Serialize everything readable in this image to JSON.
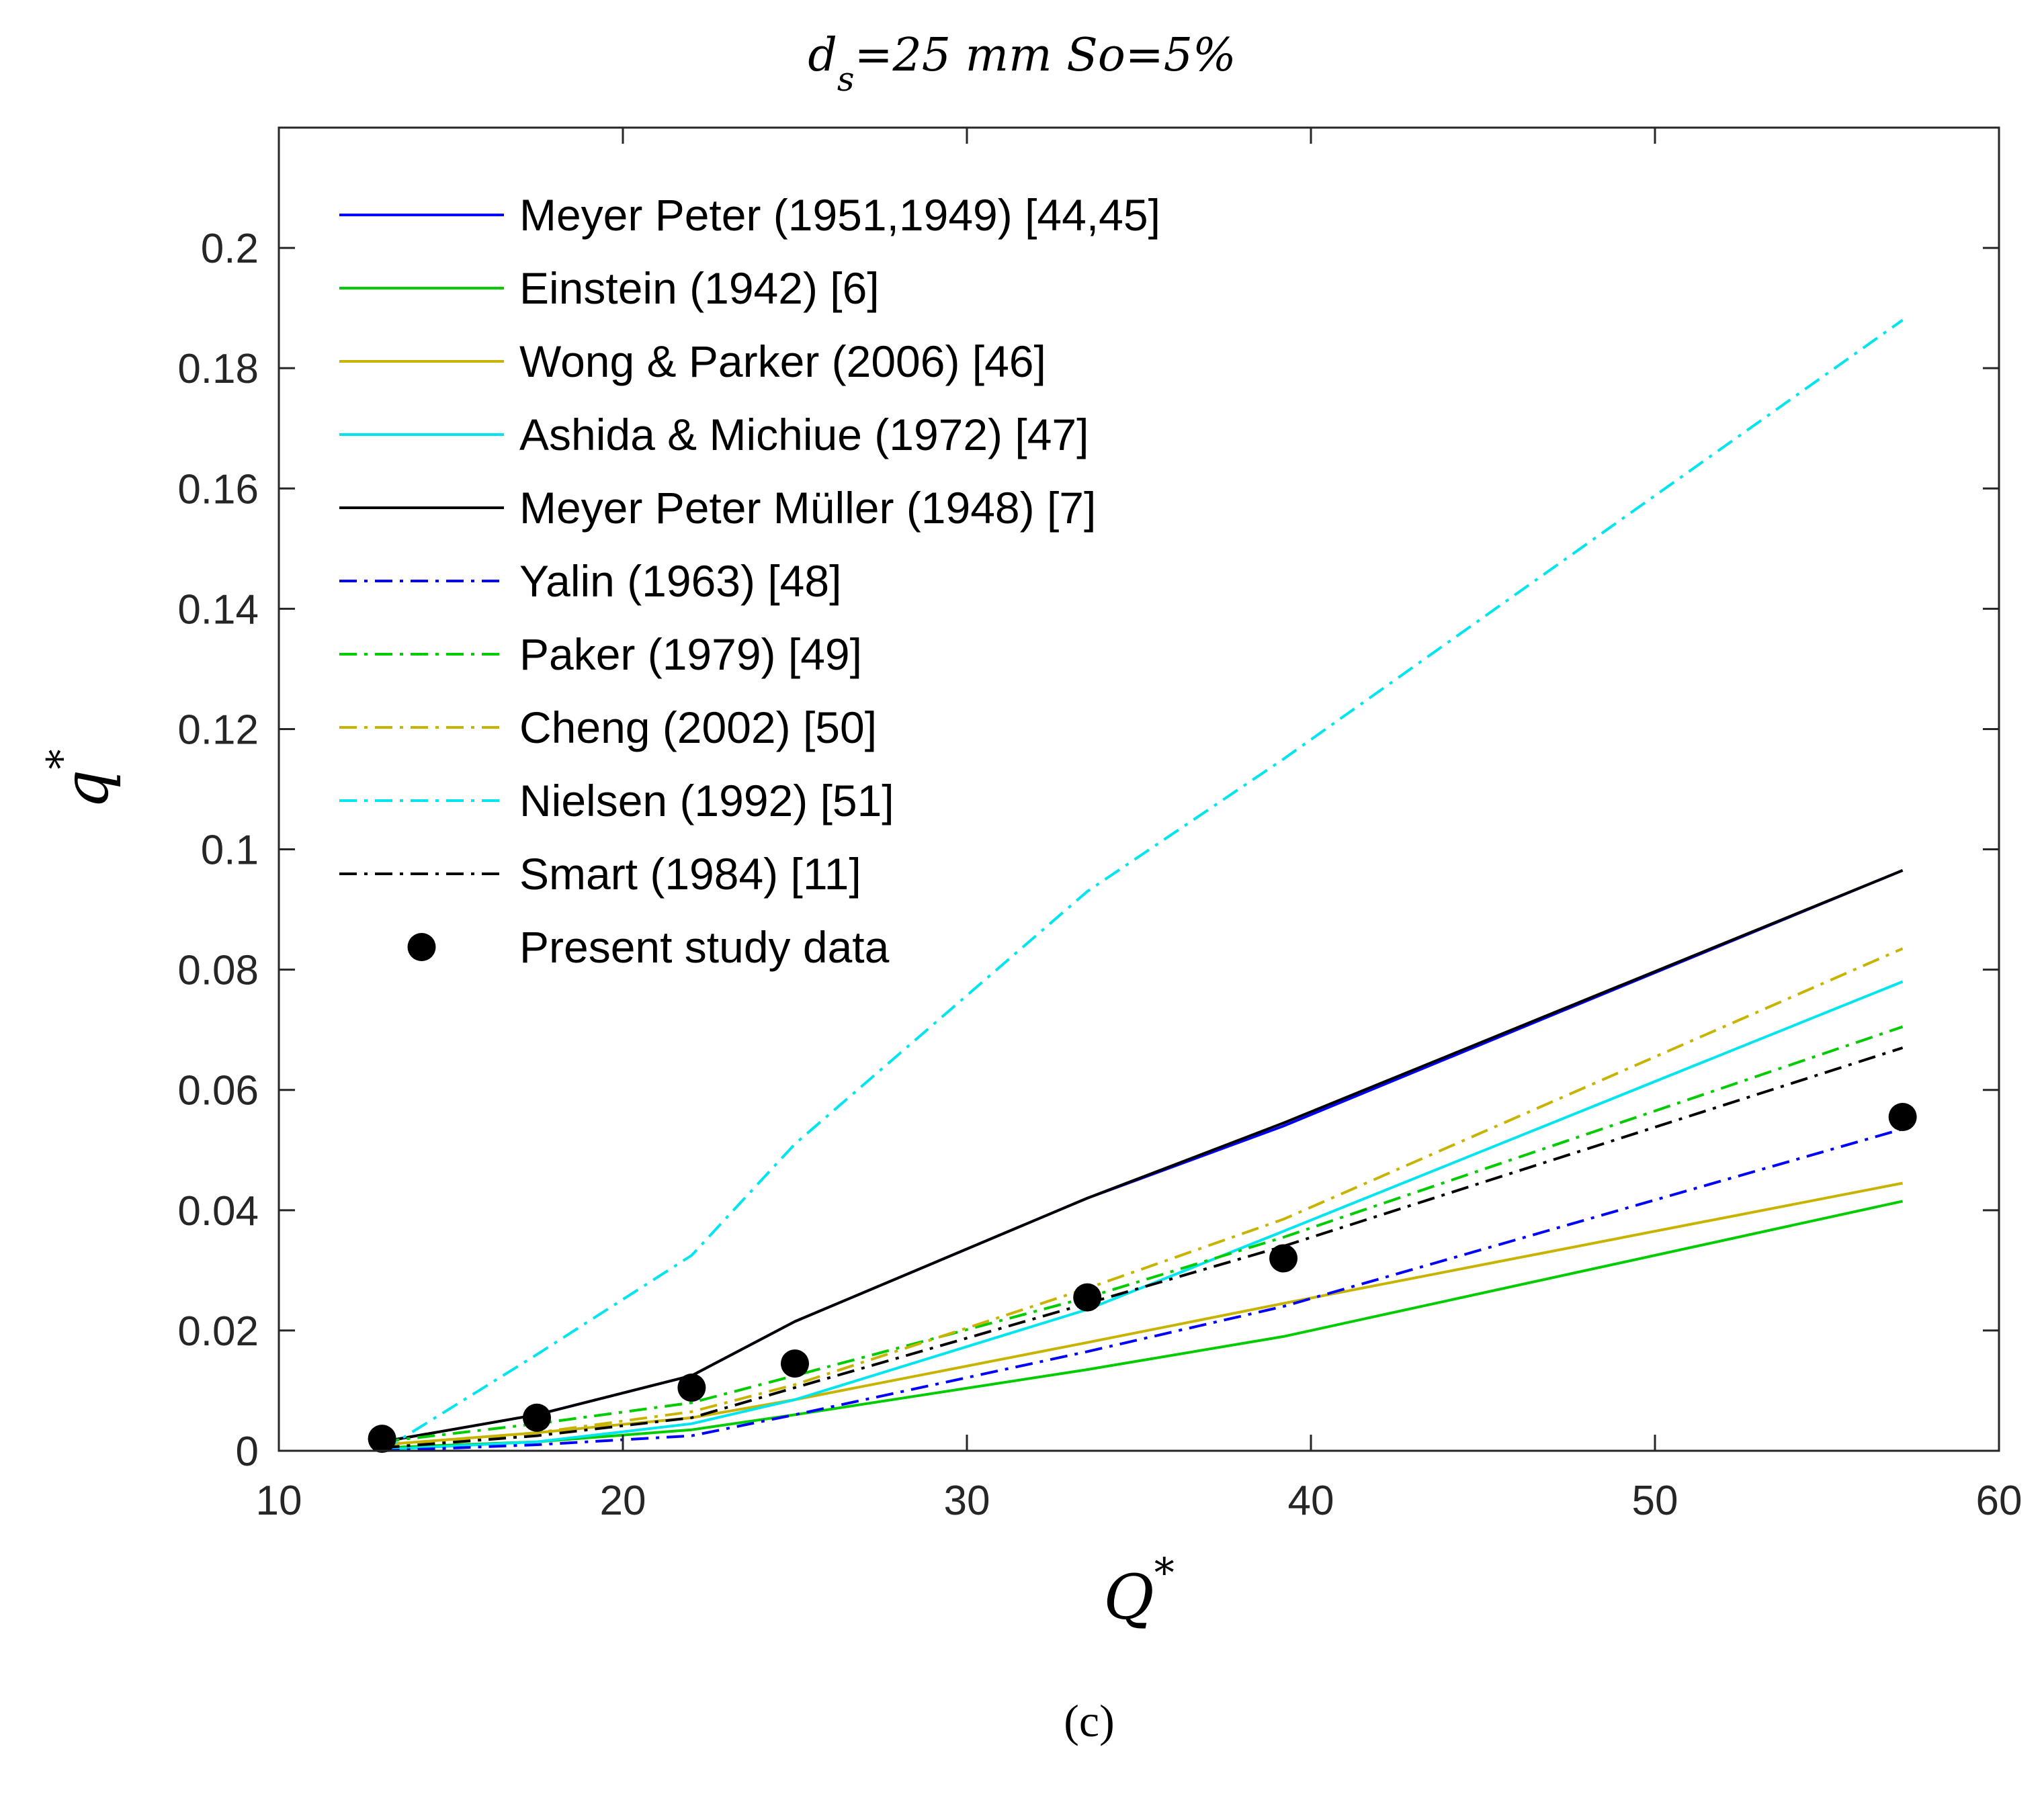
{
  "chart_data": {
    "type": "line",
    "title": {
      "main": "d",
      "subscript": "s",
      "rest": "=25 mm So=5%"
    },
    "xlabel": {
      "symbol": "Q",
      "superscript": "*"
    },
    "ylabel": {
      "symbol": "q",
      "superscript": "*"
    },
    "xlim": [
      10,
      60
    ],
    "ylim": [
      0,
      0.22
    ],
    "x_ticks": [
      10,
      20,
      30,
      40,
      50,
      60
    ],
    "x_tick_labels": [
      "10",
      "20",
      "30",
      "40",
      "50",
      "60"
    ],
    "y_ticks": [
      0,
      0.02,
      0.04,
      0.06,
      0.08,
      0.1,
      0.12,
      0.14,
      0.16,
      0.18,
      0.2
    ],
    "y_tick_labels": [
      "0",
      "0.02",
      "0.04",
      "0.06",
      "0.08",
      "0.1",
      "0.12",
      "0.14",
      "0.16",
      "0.18",
      "0.2"
    ],
    "grid": false,
    "legend_position": "top-left",
    "x": [
      13,
      17.5,
      22,
      25,
      33.5,
      39.2,
      57.2
    ],
    "series": [
      {
        "name": "Meyer Peter (1951,1949) [44,45]",
        "color": "#0000ff",
        "style": "solid",
        "values": [
          0.0015,
          0.006,
          0.0125,
          0.0215,
          0.042,
          0.054,
          0.0965
        ]
      },
      {
        "name": "Einstein (1942) [6]",
        "color": "#00cc00",
        "style": "solid",
        "values": [
          0.0005,
          0.0015,
          0.0035,
          0.006,
          0.0135,
          0.019,
          0.0415
        ]
      },
      {
        "name": "Wong & Parker (2006) [46]",
        "color": "#c8b400",
        "style": "solid",
        "values": [
          0.001,
          0.003,
          0.0055,
          0.0085,
          0.018,
          0.0245,
          0.0445
        ]
      },
      {
        "name": "Ashida & Michiue (1972) [47]",
        "color": "#00e5ee",
        "style": "solid",
        "values": [
          0.0002,
          0.0015,
          0.0045,
          0.0085,
          0.0235,
          0.0365,
          0.078
        ]
      },
      {
        "name": "Meyer Peter Müller (1948) [7]",
        "color": "#000000",
        "style": "solid",
        "values": [
          0.0015,
          0.006,
          0.0125,
          0.0215,
          0.042,
          0.0545,
          0.0965
        ]
      },
      {
        "name": "Yalin (1963) [48]",
        "color": "#0000ff",
        "style": "dashdot",
        "values": [
          0.0,
          0.001,
          0.0025,
          0.006,
          0.0165,
          0.024,
          0.0535
        ]
      },
      {
        "name": "Paker (1979) [49]",
        "color": "#00cc00",
        "style": "dashdot",
        "values": [
          0.0015,
          0.0045,
          0.008,
          0.0125,
          0.0255,
          0.0355,
          0.0705
        ]
      },
      {
        "name": "Cheng (2002) [50]",
        "color": "#c8b400",
        "style": "dashdot",
        "values": [
          0.0005,
          0.003,
          0.0065,
          0.011,
          0.027,
          0.0385,
          0.0835
        ]
      },
      {
        "name": "Nielsen (1992) [51]",
        "color": "#00e5ee",
        "style": "dashdot",
        "values": [
          0.0,
          0.016,
          0.0325,
          0.051,
          0.093,
          0.115,
          0.188
        ]
      },
      {
        "name": "Smart (1984) [11]",
        "color": "#000000",
        "style": "dashdot",
        "values": [
          0.0005,
          0.0025,
          0.0055,
          0.0105,
          0.0245,
          0.034,
          0.067
        ]
      }
    ],
    "scatter": {
      "name": "Present study data",
      "color": "#000000",
      "points": [
        [
          13,
          0.002
        ],
        [
          17.5,
          0.0055
        ],
        [
          22,
          0.0105
        ],
        [
          25,
          0.0145
        ],
        [
          33.5,
          0.0255
        ],
        [
          39.2,
          0.032
        ],
        [
          57.2,
          0.0555
        ]
      ]
    }
  },
  "caption": "(c)"
}
